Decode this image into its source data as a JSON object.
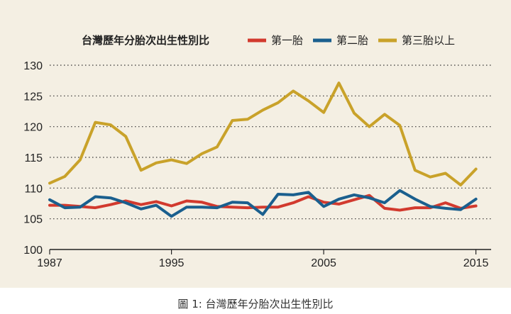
{
  "caption": "圖 1: 台灣歷年分胎次出生性別比",
  "chart_data": {
    "type": "line",
    "title": "台灣歷年分胎次出生性別比",
    "xlabel": "",
    "ylabel": "",
    "xlim": [
      1987,
      2016
    ],
    "ylim": [
      100,
      130
    ],
    "xticks": [
      1987,
      1995,
      2005,
      2015
    ],
    "yticks": [
      100,
      105,
      110,
      115,
      120,
      125,
      130
    ],
    "grid": "horizontal-dotted",
    "legend_position": "top",
    "x": [
      1987,
      1988,
      1989,
      1990,
      1991,
      1992,
      1993,
      1994,
      1995,
      1996,
      1997,
      1998,
      1999,
      2000,
      2001,
      2002,
      2003,
      2004,
      2005,
      2006,
      2007,
      2008,
      2009,
      2010,
      2011,
      2012,
      2013,
      2014,
      2015
    ],
    "series": [
      {
        "name": "第一胎",
        "color": "#d23a2e",
        "values": [
          107.2,
          107.2,
          107.0,
          106.8,
          107.3,
          107.9,
          107.3,
          107.8,
          107.1,
          107.9,
          107.7,
          107.0,
          106.9,
          106.8,
          106.9,
          106.9,
          107.6,
          108.6,
          107.7,
          107.4,
          108.1,
          108.8,
          106.7,
          106.4,
          106.8,
          106.8,
          107.6,
          106.7,
          107.1
        ]
      },
      {
        "name": "第二胎",
        "color": "#1a5f8e",
        "values": [
          108.1,
          106.8,
          106.9,
          108.6,
          108.4,
          107.6,
          106.6,
          107.2,
          105.4,
          106.9,
          106.9,
          106.8,
          107.7,
          107.6,
          105.7,
          109.0,
          108.9,
          109.3,
          107.0,
          108.2,
          108.9,
          108.4,
          107.6,
          109.6,
          108.2,
          107.0,
          106.7,
          106.5,
          108.2
        ]
      },
      {
        "name": "第三胎以上",
        "color": "#c9a22a",
        "values": [
          110.8,
          111.9,
          114.6,
          120.7,
          120.3,
          118.4,
          112.9,
          114.1,
          114.6,
          114.0,
          115.6,
          116.7,
          121.0,
          121.2,
          122.7,
          123.9,
          125.8,
          124.2,
          122.3,
          127.1,
          122.2,
          120.0,
          122.0,
          120.2,
          112.9,
          111.8,
          112.4,
          110.5,
          113.1
        ]
      }
    ]
  }
}
